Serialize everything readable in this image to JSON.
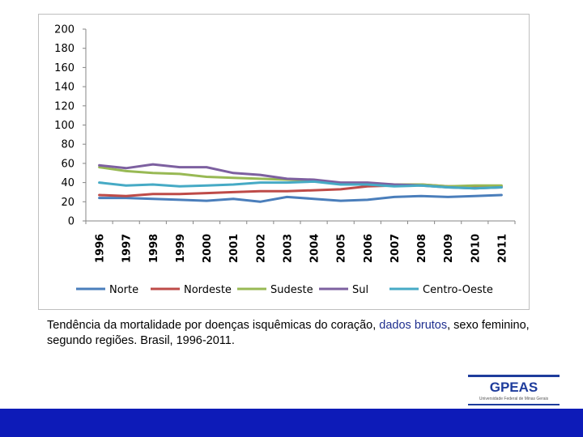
{
  "chart_data": {
    "type": "line",
    "title": "",
    "xlabel": "",
    "ylabel": "",
    "ylim": [
      0,
      200
    ],
    "yticks": [
      0,
      20,
      40,
      60,
      80,
      100,
      120,
      140,
      160,
      180,
      200
    ],
    "categories": [
      "1996",
      "1997",
      "1998",
      "1999",
      "2000",
      "2001",
      "2002",
      "2003",
      "2004",
      "2005",
      "2006",
      "2007",
      "2008",
      "2009",
      "2010",
      "2011"
    ],
    "legend_position": "bottom",
    "grid": false,
    "series": [
      {
        "name": "Norte",
        "color": "#4a7ebb",
        "values": [
          24,
          24,
          23,
          22,
          21,
          23,
          20,
          25,
          23,
          21,
          22,
          25,
          26,
          25,
          26,
          27
        ]
      },
      {
        "name": "Nordeste",
        "color": "#be4b48",
        "values": [
          27,
          26,
          28,
          28,
          29,
          30,
          31,
          31,
          32,
          33,
          36,
          37,
          38,
          36,
          36,
          36
        ]
      },
      {
        "name": "Sudeste",
        "color": "#98b954",
        "values": [
          56,
          52,
          50,
          49,
          46,
          45,
          44,
          43,
          42,
          39,
          39,
          38,
          38,
          36,
          37,
          37
        ]
      },
      {
        "name": "Sul",
        "color": "#7d60a0",
        "values": [
          58,
          55,
          59,
          56,
          56,
          50,
          48,
          44,
          43,
          40,
          40,
          38,
          37,
          35,
          34,
          35
        ]
      },
      {
        "name": "Centro-Oeste",
        "color": "#46aac5",
        "values": [
          40,
          37,
          38,
          36,
          37,
          38,
          40,
          40,
          41,
          38,
          38,
          36,
          37,
          35,
          34,
          35
        ]
      }
    ]
  },
  "caption": {
    "part1": "Tendência da mortalidade por doenças isquêmicas do coração,  ",
    "highlight": "dados brutos",
    "part2": ", sexo feminino, segundo regiões. Brasil, 1996-2011."
  },
  "logo": {
    "text": "GPEAS",
    "subtitle": "Universidade Federal de Minas Gerais"
  },
  "colors": {
    "footer_bar": "#0d1bb8",
    "logo": "#1e3c9c",
    "caption_highlight": "#1f2f8f"
  }
}
